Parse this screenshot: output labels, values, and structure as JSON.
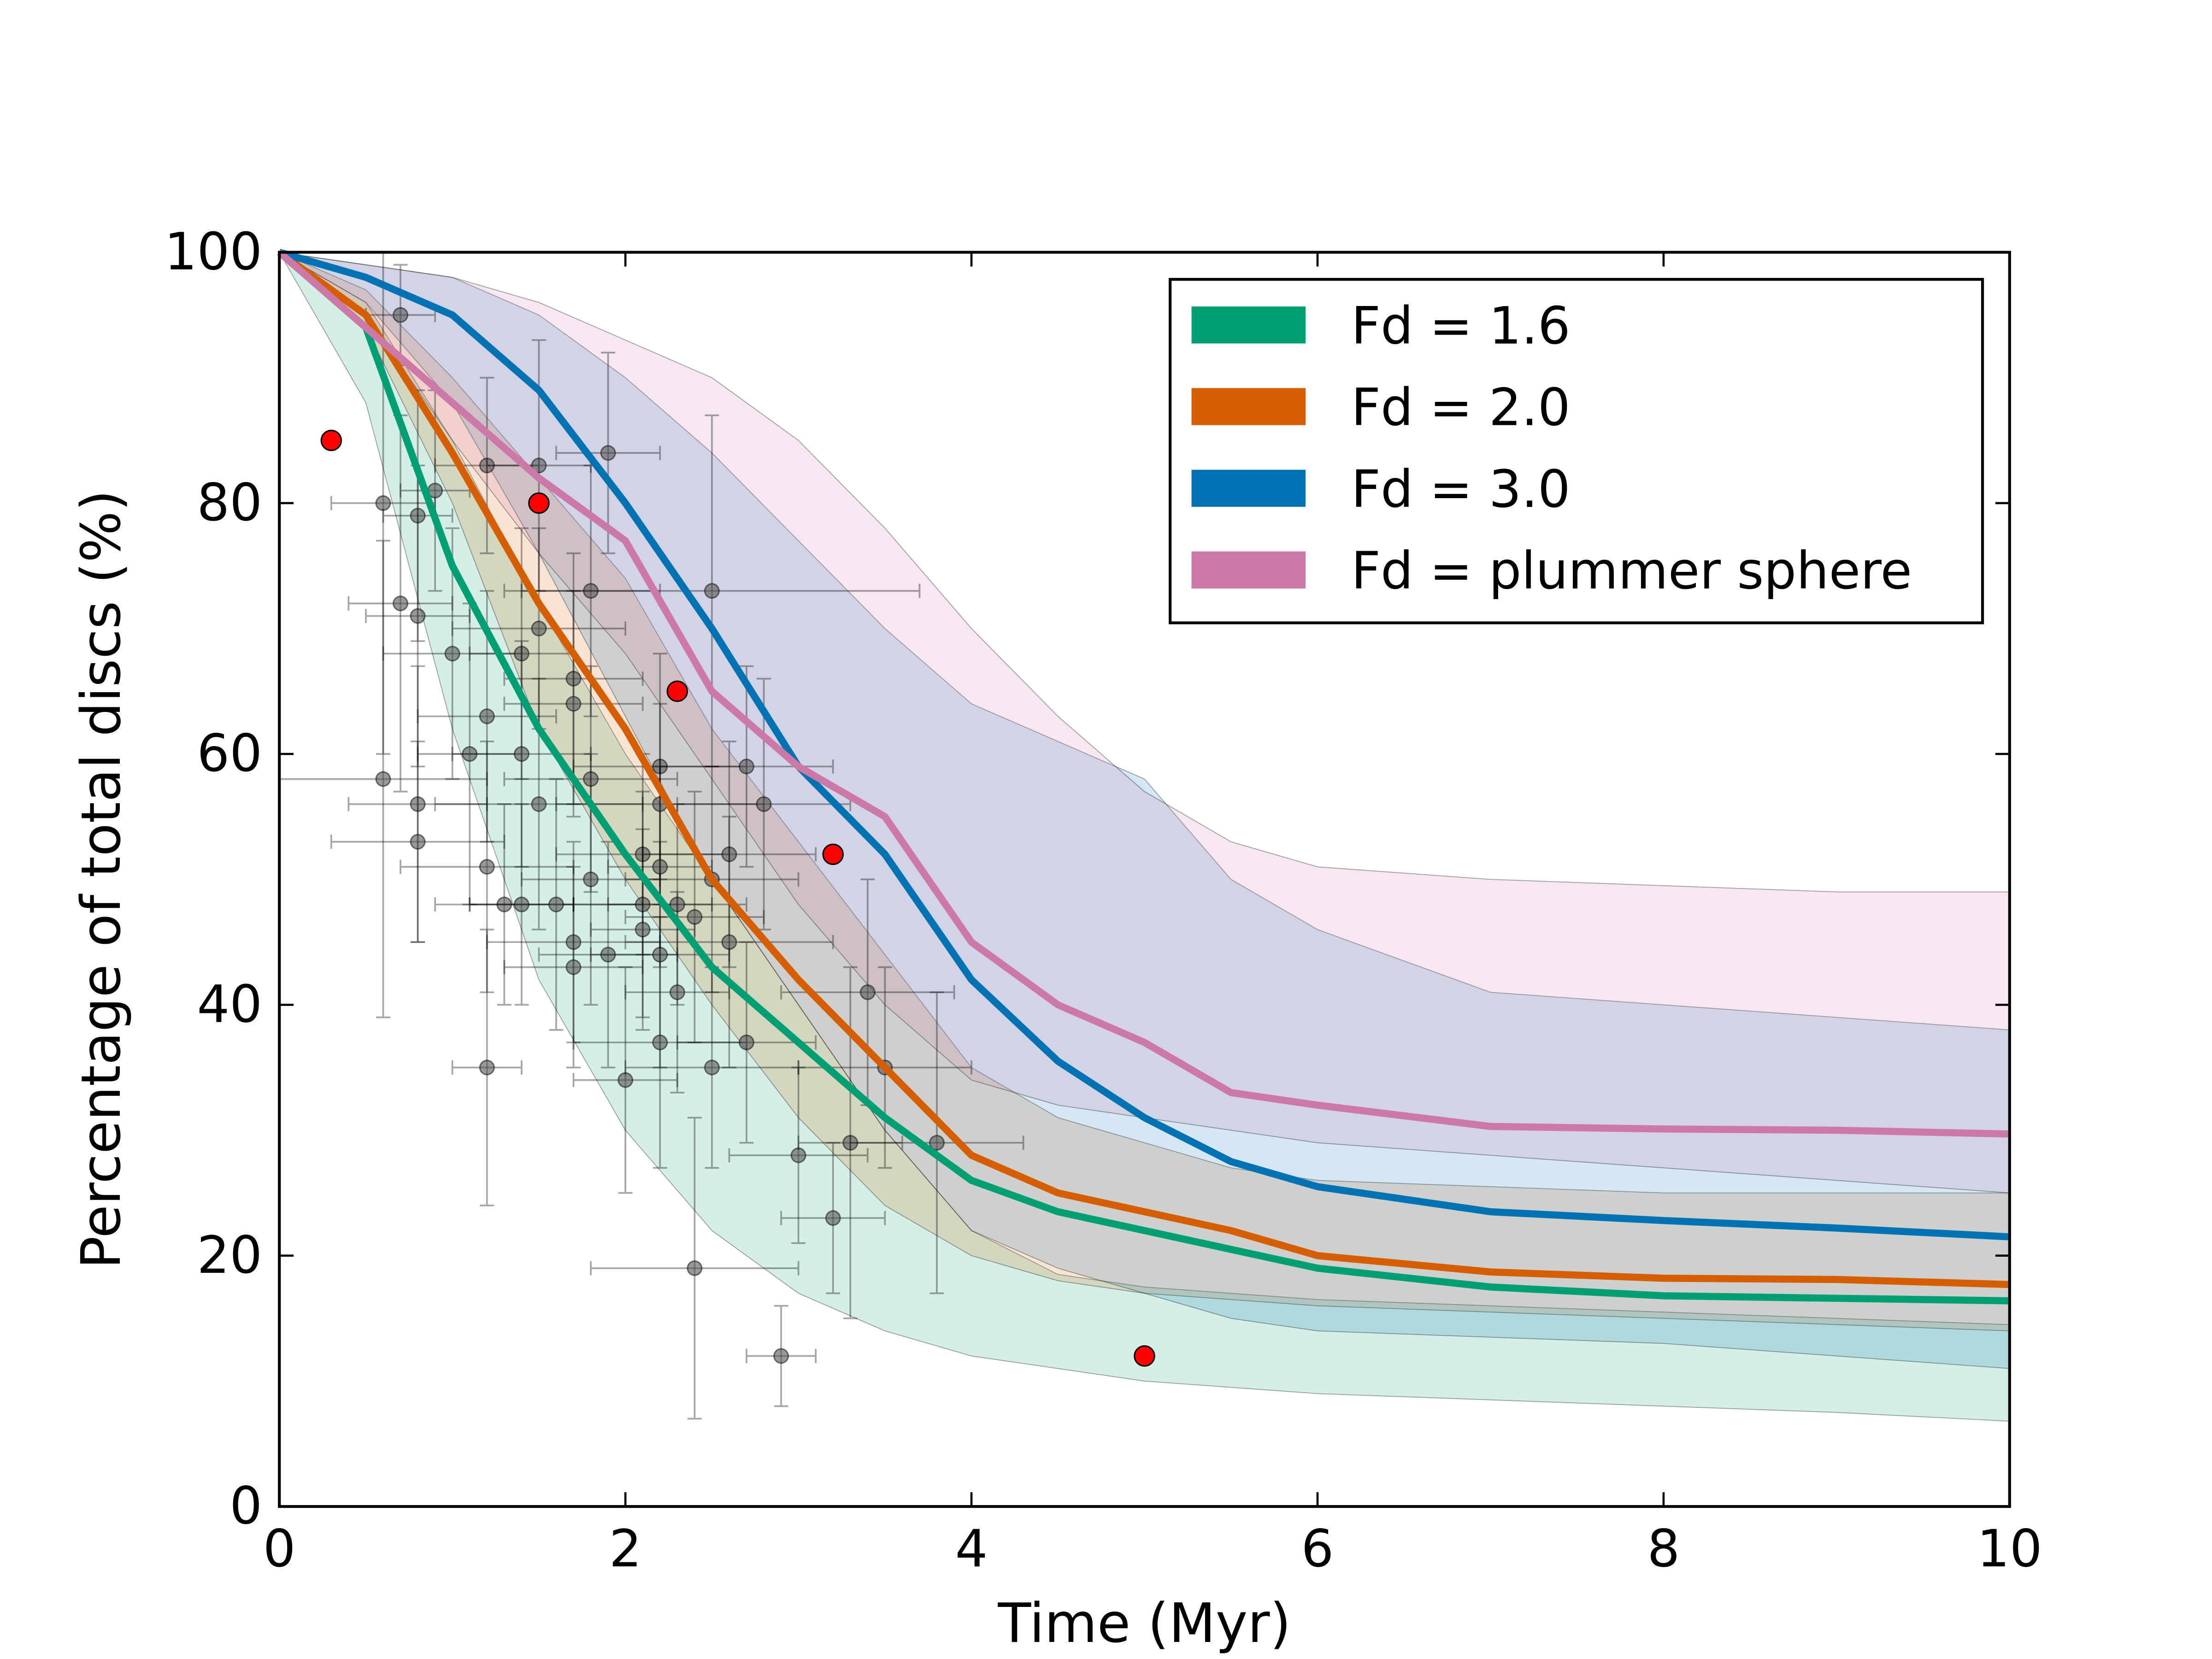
{
  "chart_data": {
    "type": "line",
    "xlabel": "Time (Myr)",
    "ylabel": "Percentage of total discs (%)",
    "xlim": [
      0,
      10
    ],
    "ylim": [
      0,
      100
    ],
    "xticks": [
      0,
      2,
      4,
      6,
      8,
      10
    ],
    "yticks": [
      0,
      20,
      40,
      60,
      80,
      100
    ],
    "legend": "upper right",
    "x": [
      0,
      0.5,
      1,
      1.5,
      2,
      2.5,
      3,
      3.5,
      4,
      4.5,
      5,
      5.5,
      6,
      7,
      8,
      9,
      10
    ],
    "series": [
      {
        "name": "Fd = 1.6",
        "color": "#009e73",
        "values": [
          100,
          94,
          75,
          62,
          52,
          43,
          37,
          31,
          26,
          23.5,
          22,
          20.5,
          19,
          17.5,
          16.8,
          16.6,
          16.4
        ],
        "lower": [
          100,
          88,
          62,
          42,
          30,
          22,
          17,
          14,
          12,
          11,
          10,
          9.5,
          9,
          8.5,
          8,
          7.5,
          6.8
        ],
        "upper": [
          100,
          96,
          85,
          72,
          60,
          50,
          40,
          30,
          22,
          18.5,
          17.5,
          17,
          16.5,
          16,
          15.5,
          15,
          14.5
        ]
      },
      {
        "name": "Fd = 2.0",
        "color": "#d55e00",
        "values": [
          100,
          95,
          84,
          72,
          62,
          50,
          42,
          35,
          28,
          25,
          23.5,
          22,
          20,
          18.7,
          18.2,
          18.1,
          17.7
        ],
        "lower": [
          100,
          94,
          80,
          62,
          50,
          40,
          31,
          24,
          20,
          18,
          17,
          16.5,
          16,
          15.5,
          15,
          14.5,
          14
        ],
        "upper": [
          100,
          97,
          90,
          82,
          74,
          62,
          53,
          44,
          35,
          31,
          29,
          27,
          26,
          25.5,
          25,
          25,
          25
        ]
      },
      {
        "name": "Fd = 3.0",
        "color": "#0072b2",
        "values": [
          100,
          98,
          95,
          89,
          80,
          70,
          59,
          52,
          42,
          35.5,
          31,
          27.5,
          25.5,
          23.5,
          22.8,
          22.2,
          21.5
        ],
        "lower": [
          100,
          96,
          88,
          76,
          63,
          50,
          40,
          30,
          22,
          19,
          17,
          15,
          14,
          13.5,
          13,
          12,
          11
        ],
        "upper": [
          100,
          99,
          98,
          95,
          90,
          84,
          77,
          70,
          64,
          61,
          58,
          50,
          46,
          41,
          40,
          39,
          38
        ]
      },
      {
        "name": "Fd = plummer sphere",
        "color": "#cc79a7",
        "values": [
          100,
          94,
          88,
          82,
          77,
          65,
          59,
          55,
          45,
          40,
          37,
          33,
          32,
          30.3,
          30.1,
          30,
          29.7
        ],
        "lower": [
          100,
          95,
          85,
          76,
          68,
          58,
          48,
          40,
          34,
          32,
          31,
          30,
          29,
          28,
          27,
          26,
          25
        ],
        "upper": [
          100,
          99,
          98,
          96,
          93,
          90,
          85,
          78,
          70,
          63,
          57,
          53,
          51,
          50,
          49.5,
          49,
          49
        ]
      }
    ],
    "observations": {
      "color": "#555555",
      "x": [
        0.6,
        0.6,
        0.7,
        0.7,
        0.8,
        0.8,
        0.8,
        0.8,
        0.9,
        1.0,
        1.1,
        1.2,
        1.2,
        1.2,
        1.2,
        1.3,
        1.4,
        1.4,
        1.4,
        1.5,
        1.5,
        1.5,
        1.6,
        1.7,
        1.7,
        1.7,
        1.7,
        1.8,
        1.8,
        1.8,
        1.9,
        1.9,
        2.0,
        2.1,
        2.1,
        2.1,
        2.2,
        2.2,
        2.2,
        2.2,
        2.2,
        2.3,
        2.3,
        2.4,
        2.4,
        2.5,
        2.5,
        2.5,
        2.6,
        2.6,
        2.7,
        2.7,
        2.8,
        2.9,
        3.0,
        3.2,
        3.3,
        3.4,
        3.5,
        3.8
      ],
      "y": [
        80,
        58,
        95,
        72,
        79,
        71,
        56,
        53,
        81,
        68,
        60,
        83,
        63,
        51,
        35,
        48,
        68,
        60,
        48,
        83,
        70,
        56,
        48,
        66,
        64,
        45,
        43,
        73,
        58,
        50,
        84,
        44,
        34,
        52,
        48,
        46,
        59,
        56,
        51,
        44,
        37,
        48,
        41,
        47,
        19,
        73,
        50,
        35,
        52,
        45,
        59,
        37,
        56,
        12,
        28,
        23,
        29,
        41,
        35,
        29
      ],
      "xerr": [
        0.3,
        0.6,
        0.2,
        0.3,
        0.2,
        0.3,
        0.4,
        0.5,
        0.2,
        0.4,
        0.3,
        0.3,
        0.4,
        0.5,
        0.2,
        0.4,
        0.3,
        0.4,
        0.3,
        0.3,
        0.5,
        0.6,
        0.5,
        0.4,
        0.4,
        0.5,
        0.4,
        0.4,
        0.5,
        0.4,
        0.3,
        0.4,
        0.3,
        0.5,
        0.4,
        0.3,
        0.5,
        0.6,
        0.3,
        0.4,
        0.5,
        0.4,
        0.3,
        0.4,
        0.6,
        1.2,
        0.5,
        0.5,
        0.5,
        0.6,
        0.5,
        0.4,
        0.5,
        0.2,
        0.4,
        0.3,
        0.3,
        0.5,
        0.5,
        0.5
      ],
      "yerr": [
        20,
        19,
        4,
        15,
        10,
        12,
        11,
        8,
        8,
        10,
        12,
        7,
        10,
        10,
        11,
        8,
        10,
        9,
        8,
        10,
        8,
        10,
        10,
        10,
        9,
        8,
        8,
        10,
        9,
        10,
        8,
        9,
        9,
        8,
        9,
        8,
        9,
        8,
        8,
        9,
        10,
        8,
        8,
        10,
        12,
        14,
        9,
        8,
        9,
        10,
        8,
        8,
        10,
        4,
        7,
        6,
        14,
        9,
        8,
        12
      ]
    },
    "highlighted": {
      "color": "#ff0000",
      "x": [
        0.3,
        1.5,
        2.3,
        3.2,
        5
      ],
      "y": [
        85,
        80,
        65,
        52,
        12
      ]
    }
  }
}
